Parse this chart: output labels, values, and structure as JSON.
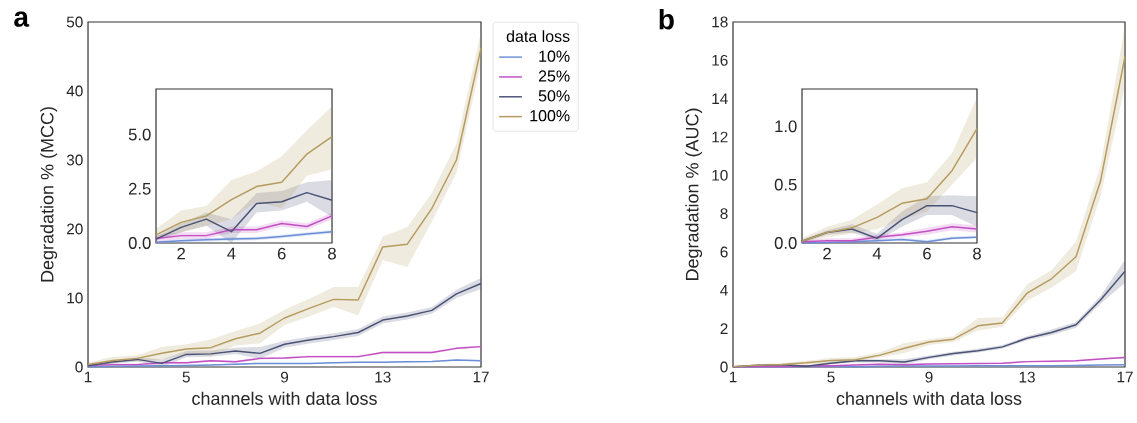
{
  "chart_data": [
    {
      "type": "line",
      "title": "a",
      "xlabel": "channels with data loss",
      "ylabel": "Degradation % (MCC)",
      "legend": "right",
      "legend_title": "data loss",
      "x": [
        1,
        2,
        3,
        4,
        5,
        6,
        7,
        8,
        9,
        10,
        11,
        12,
        13,
        14,
        15,
        16,
        17
      ],
      "xlim": [
        1,
        17
      ],
      "ylim": [
        0,
        50
      ],
      "xticks": [
        1,
        5,
        9,
        13,
        17
      ],
      "yticks": [
        0,
        10,
        20,
        30,
        40,
        50
      ],
      "series": [
        {
          "name": "10%",
          "color": "#6b8ed6",
          "values": [
            0.03,
            0.1,
            0.15,
            0.18,
            0.21,
            0.3,
            0.41,
            0.52,
            0.5,
            0.5,
            0.6,
            0.7,
            0.7,
            0.75,
            0.8,
            1.0,
            0.9
          ],
          "lower": [
            0,
            0.02,
            0.07,
            0.1,
            0.13,
            0.22,
            0.33,
            0.44,
            0.42,
            0.42,
            0.52,
            0.62,
            0.62,
            0.67,
            0.72,
            0.9,
            0.8
          ],
          "upper": [
            0.08,
            0.18,
            0.23,
            0.26,
            0.29,
            0.38,
            0.49,
            0.6,
            0.58,
            0.58,
            0.68,
            0.78,
            0.78,
            0.83,
            0.88,
            1.1,
            1.0
          ]
        },
        {
          "name": "25%",
          "color": "#c44fc4",
          "values": [
            0.21,
            0.34,
            0.34,
            0.61,
            0.61,
            0.9,
            0.76,
            1.25,
            1.3,
            1.5,
            1.5,
            1.5,
            2.1,
            2.1,
            2.1,
            2.7,
            2.95
          ],
          "lower": [
            0.06,
            0.19,
            0.19,
            0.46,
            0.46,
            0.75,
            0.61,
            1.1,
            1.15,
            1.35,
            1.35,
            1.35,
            1.95,
            1.95,
            1.95,
            2.55,
            2.8
          ],
          "upper": [
            0.36,
            0.49,
            0.49,
            0.76,
            0.76,
            1.05,
            0.91,
            1.4,
            1.45,
            1.65,
            1.65,
            1.65,
            2.25,
            2.25,
            2.25,
            2.85,
            3.1
          ]
        },
        {
          "name": "50%",
          "color": "#4a5275",
          "values": [
            0.18,
            0.72,
            1.1,
            0.52,
            1.82,
            1.9,
            2.32,
            1.97,
            3.3,
            3.9,
            4.4,
            5.0,
            6.8,
            7.4,
            8.2,
            10.6,
            12.1
          ],
          "lower": [
            0.1,
            0.5,
            0.8,
            0.0,
            1.4,
            1.5,
            1.9,
            1.2,
            2.8,
            3.4,
            3.9,
            4.5,
            6.3,
            6.9,
            7.7,
            10.0,
            11.3
          ],
          "upper": [
            0.3,
            0.9,
            1.4,
            1.1,
            2.3,
            2.4,
            2.8,
            2.9,
            3.8,
            4.4,
            4.9,
            5.5,
            7.3,
            7.9,
            8.7,
            11.2,
            12.9
          ]
        },
        {
          "name": "100%",
          "color": "#b59b5e",
          "values": [
            0.37,
            0.95,
            1.25,
            2.0,
            2.6,
            2.8,
            4.1,
            4.9,
            7.1,
            8.5,
            9.8,
            9.7,
            17.4,
            17.8,
            23,
            30,
            46.2
          ],
          "lower": [
            0.18,
            0.5,
            0.8,
            1.1,
            1.9,
            1.6,
            3.1,
            3.4,
            6.1,
            7.3,
            8.7,
            7.5,
            15.5,
            14.5,
            21.1,
            28.1,
            44
          ],
          "upper": [
            0.65,
            1.5,
            1.7,
            2.9,
            3.3,
            4.0,
            5.2,
            6.3,
            8.3,
            9.9,
            11.6,
            11.6,
            18.9,
            20.3,
            25.2,
            32.4,
            48.6
          ]
        }
      ]
    },
    {
      "type": "line",
      "x": [
        1,
        2,
        3,
        4,
        5,
        6,
        7,
        8
      ],
      "xlim": [
        1,
        8
      ],
      "ylim": [
        0,
        7.1
      ],
      "xticks": [
        2,
        4,
        6,
        8
      ],
      "yticks": [
        {
          "value": 0,
          "label": "0.0"
        },
        {
          "value": 2.5,
          "label": "2.5"
        },
        {
          "value": 5,
          "label": "5.0"
        }
      ],
      "series": [
        {
          "color": "#6b8ed6",
          "values": [
            0.03,
            0.1,
            0.15,
            0.18,
            0.21,
            0.3,
            0.41,
            0.52
          ],
          "lower": [
            0,
            0.02,
            0.07,
            0.1,
            0.13,
            0.22,
            0.33,
            0.44
          ],
          "upper": [
            0.08,
            0.18,
            0.23,
            0.26,
            0.29,
            0.38,
            0.49,
            0.6
          ]
        },
        {
          "color": "#c44fc4",
          "values": [
            0.21,
            0.34,
            0.34,
            0.61,
            0.61,
            0.9,
            0.76,
            1.25
          ],
          "lower": [
            0.06,
            0.19,
            0.19,
            0.46,
            0.46,
            0.75,
            0.61,
            1.1
          ],
          "upper": [
            0.36,
            0.49,
            0.49,
            0.76,
            0.76,
            1.05,
            0.91,
            1.4
          ]
        },
        {
          "color": "#4a5275",
          "values": [
            0.18,
            0.72,
            1.1,
            0.52,
            1.82,
            1.9,
            2.32,
            1.97
          ],
          "lower": [
            0.1,
            0.5,
            0.8,
            0.0,
            1.4,
            1.5,
            1.9,
            1.2
          ],
          "upper": [
            0.3,
            0.9,
            1.4,
            1.1,
            2.3,
            2.4,
            2.8,
            2.9
          ]
        },
        {
          "color": "#b59b5e",
          "values": [
            0.37,
            0.95,
            1.25,
            2.0,
            2.6,
            2.8,
            4.1,
            4.9
          ],
          "lower": [
            0.18,
            0.5,
            0.8,
            1.1,
            1.9,
            1.6,
            3.1,
            3.4
          ],
          "upper": [
            0.65,
            1.5,
            1.7,
            2.9,
            3.3,
            4.0,
            5.2,
            6.3
          ]
        }
      ]
    },
    {
      "type": "line",
      "title": "b",
      "xlabel": "channels with data loss",
      "ylabel": "Degradation % (AUC)",
      "x": [
        1,
        2,
        3,
        4,
        5,
        6,
        7,
        8,
        9,
        10,
        11,
        12,
        13,
        14,
        15,
        16,
        17
      ],
      "xlim": [
        1,
        17
      ],
      "ylim": [
        0,
        18
      ],
      "xticks": [
        1,
        5,
        9,
        13,
        17
      ],
      "yticks": [
        0,
        2,
        4,
        6,
        8,
        10,
        12,
        14,
        16,
        18
      ],
      "series": [
        {
          "color": "#6b8ed6",
          "values": [
            0,
            0.01,
            0.01,
            0.02,
            0.03,
            0.01,
            0.04,
            0.05,
            0.05,
            0.05,
            0.06,
            0.06,
            0.07,
            0.07,
            0.08,
            0.1,
            0.12
          ]
        },
        {
          "color": "#c44fc4",
          "values": [
            0.01,
            0.02,
            0.02,
            0.05,
            0.07,
            0.1,
            0.14,
            0.12,
            0.16,
            0.17,
            0.18,
            0.2,
            0.28,
            0.3,
            0.32,
            0.42,
            0.5
          ],
          "lower": [
            0,
            0,
            0,
            0.03,
            0.05,
            0.07,
            0.11,
            0.09,
            0.13,
            0.14,
            0.15,
            0.17,
            0.25,
            0.27,
            0.29,
            0.39,
            0.46
          ],
          "upper": [
            0.02,
            0.04,
            0.04,
            0.07,
            0.09,
            0.13,
            0.17,
            0.15,
            0.19,
            0.2,
            0.21,
            0.23,
            0.31,
            0.33,
            0.35,
            0.45,
            0.54
          ]
        },
        {
          "color": "#4a5275",
          "values": [
            0.015,
            0.09,
            0.12,
            0.04,
            0.2,
            0.32,
            0.32,
            0.26,
            0.5,
            0.7,
            0.85,
            1.05,
            1.5,
            1.8,
            2.2,
            3.5,
            5.0
          ],
          "lower": [
            0,
            0.07,
            0.09,
            0.02,
            0.14,
            0.24,
            0.24,
            0.14,
            0.4,
            0.6,
            0.75,
            0.95,
            1.4,
            1.65,
            2.05,
            3.3,
            4.4
          ],
          "upper": [
            0.03,
            0.11,
            0.16,
            0.08,
            0.27,
            0.4,
            0.41,
            0.4,
            0.6,
            0.8,
            0.95,
            1.15,
            1.6,
            1.95,
            2.35,
            3.7,
            5.6
          ]
        },
        {
          "color": "#b59b5e",
          "values": [
            0.015,
            0.09,
            0.13,
            0.22,
            0.34,
            0.38,
            0.62,
            0.98,
            1.3,
            1.45,
            2.15,
            2.3,
            3.85,
            4.6,
            5.75,
            9.7,
            16.2
          ],
          "lower": [
            0,
            0.05,
            0.08,
            0.12,
            0.2,
            0.27,
            0.5,
            0.73,
            1.15,
            1.3,
            1.9,
            2.1,
            3.45,
            4.15,
            5.0,
            8.9,
            14.7
          ],
          "upper": [
            0.04,
            0.14,
            0.2,
            0.33,
            0.47,
            0.52,
            0.77,
            1.25,
            1.45,
            1.6,
            2.55,
            2.6,
            4.3,
            5.05,
            6.55,
            10.5,
            17.8
          ]
        }
      ]
    },
    {
      "type": "line",
      "x": [
        1,
        2,
        3,
        4,
        5,
        6,
        7,
        8
      ],
      "xlim": [
        1,
        8
      ],
      "ylim": [
        0,
        1.32
      ],
      "xticks": [
        2,
        4,
        6,
        8
      ],
      "yticks": [
        {
          "value": 0,
          "label": "0.0"
        },
        {
          "value": 0.5,
          "label": "0.5"
        },
        {
          "value": 1,
          "label": "1.0"
        }
      ],
      "series": [
        {
          "color": "#6b8ed6",
          "values": [
            0,
            0.005,
            0.01,
            0.02,
            0.03,
            0.01,
            0.04,
            0.05
          ],
          "lower": [
            0,
            0,
            0,
            0.01,
            0.02,
            0,
            0.03,
            0.04
          ],
          "upper": [
            0.01,
            0.015,
            0.02,
            0.035,
            0.045,
            0.025,
            0.055,
            0.065
          ]
        },
        {
          "color": "#c44fc4",
          "values": [
            0.01,
            0.02,
            0.02,
            0.05,
            0.07,
            0.1,
            0.14,
            0.12
          ],
          "lower": [
            0,
            0,
            0,
            0.03,
            0.05,
            0.07,
            0.11,
            0.09
          ],
          "upper": [
            0.02,
            0.04,
            0.04,
            0.07,
            0.09,
            0.13,
            0.17,
            0.15
          ]
        },
        {
          "color": "#4a5275",
          "values": [
            0.015,
            0.09,
            0.12,
            0.04,
            0.2,
            0.32,
            0.32,
            0.26
          ],
          "lower": [
            0,
            0.07,
            0.09,
            0.02,
            0.14,
            0.24,
            0.24,
            0.14
          ],
          "upper": [
            0.03,
            0.11,
            0.16,
            0.08,
            0.27,
            0.4,
            0.41,
            0.4
          ]
        },
        {
          "color": "#b59b5e",
          "values": [
            0.015,
            0.09,
            0.13,
            0.22,
            0.34,
            0.38,
            0.62,
            0.98
          ],
          "lower": [
            0,
            0.05,
            0.08,
            0.12,
            0.2,
            0.27,
            0.5,
            0.73
          ],
          "upper": [
            0.04,
            0.14,
            0.2,
            0.33,
            0.47,
            0.52,
            0.77,
            1.25
          ]
        }
      ]
    }
  ]
}
